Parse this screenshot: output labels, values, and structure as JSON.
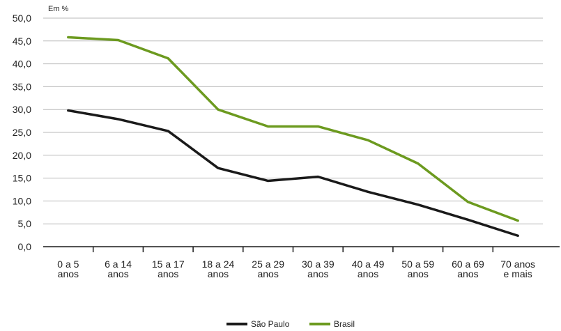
{
  "chart_data": {
    "type": "line",
    "unit_label": "Em %",
    "categories": [
      [
        "0 a 5",
        "anos"
      ],
      [
        "6 a 14",
        "anos"
      ],
      [
        "15 a 17",
        "anos"
      ],
      [
        "18 a 24",
        "anos"
      ],
      [
        "25 a 29",
        "anos"
      ],
      [
        "30 a 39",
        "anos"
      ],
      [
        "40 a 49",
        "anos"
      ],
      [
        "50 a 59",
        "anos"
      ],
      [
        "60 a 69",
        "anos"
      ],
      [
        "70 anos",
        "e mais"
      ]
    ],
    "yticks": [
      "0,0",
      "5,0",
      "10,0",
      "15,0",
      "20,0",
      "25,0",
      "30,0",
      "35,0",
      "40,0",
      "45,0",
      "50,0"
    ],
    "ylim": [
      0,
      50
    ],
    "grid": true,
    "legend_position": "bottom-center",
    "series": [
      {
        "name": "São Paulo",
        "color": "#1a1a1a",
        "values": [
          29.8,
          27.9,
          25.3,
          17.2,
          14.4,
          15.3,
          12.0,
          9.2,
          5.9,
          2.4
        ]
      },
      {
        "name": "Brasil",
        "color": "#6c9a1f",
        "values": [
          45.8,
          45.2,
          41.2,
          30.0,
          26.3,
          26.3,
          23.3,
          18.2,
          9.8,
          5.7
        ]
      }
    ]
  }
}
